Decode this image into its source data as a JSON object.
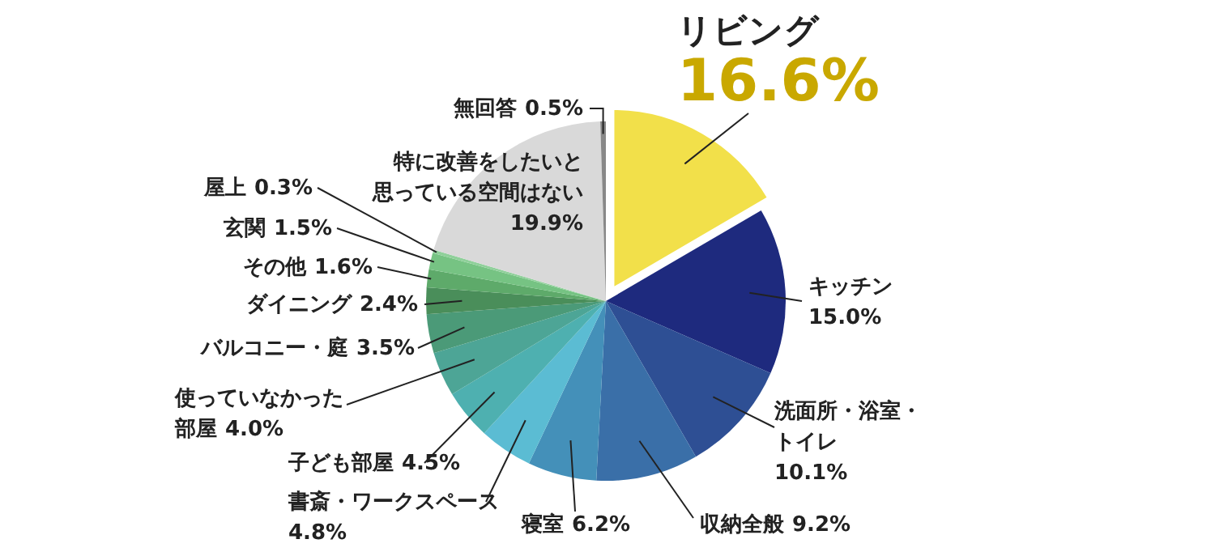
{
  "chart_data": {
    "type": "pie",
    "categories": [
      "リビング",
      "キッチン",
      "洗面所・浴室・トイレ",
      "収納全般",
      "寝室",
      "書斎・ワークスペース",
      "子ども部屋",
      "使っていなかった部屋",
      "バルコニー・庭",
      "ダイニング",
      "その他",
      "玄関",
      "屋上",
      "特に改善をしたいと思っている空間はない",
      "無回答"
    ],
    "values": [
      16.6,
      15.0,
      10.1,
      9.2,
      6.2,
      4.8,
      4.5,
      4.0,
      3.5,
      2.4,
      1.6,
      1.5,
      0.3,
      19.9,
      0.5
    ],
    "value_labels": [
      "16.6%",
      "15.0%",
      "10.1%",
      "9.2%",
      "6.2%",
      "4.8%",
      "4.5%",
      "4.0%",
      "3.5%",
      "2.4%",
      "1.6%",
      "1.5%",
      "0.3%",
      "19.9%",
      "0.5%"
    ],
    "colors": [
      "#f2e04a",
      "#1e2a7e",
      "#2e4f94",
      "#3a6fa8",
      "#4490b9",
      "#5bbcd3",
      "#4eb0b0",
      "#4da596",
      "#4b9a78",
      "#4a8e5a",
      "#5eaa6a",
      "#76c383",
      "#8fd09a",
      "#d9d9d9",
      "#888888"
    ]
  }
}
